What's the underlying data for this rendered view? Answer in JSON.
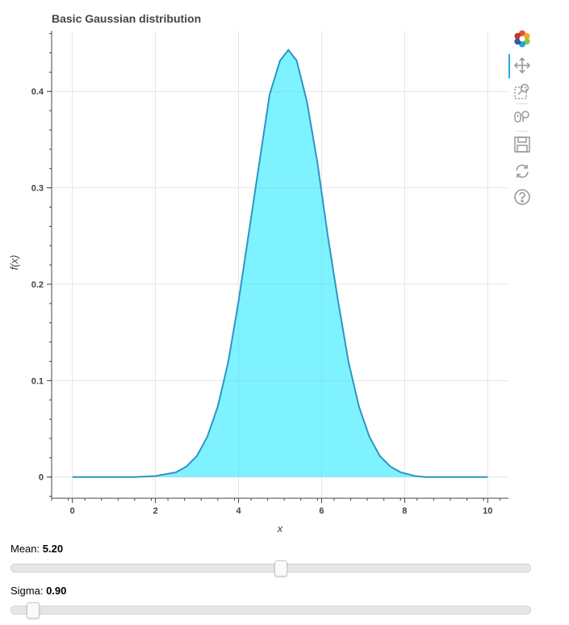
{
  "chart_data": {
    "type": "area",
    "title": "Basic Gaussian distribution",
    "xlabel": "x",
    "ylabel": "f(x)",
    "xlim": [
      -0.5,
      10.5
    ],
    "ylim": [
      -0.022,
      0.463
    ],
    "x_ticks": [
      0,
      2,
      4,
      6,
      8,
      10
    ],
    "y_ticks": [
      0,
      0.1,
      0.2,
      0.3,
      0.4
    ],
    "x_tick_labels": [
      "0",
      "2",
      "4",
      "6",
      "8",
      "10"
    ],
    "y_tick_labels": [
      "0",
      "0.1",
      "0.2",
      "0.3",
      "0.4"
    ],
    "grid": true,
    "series": [
      {
        "x": [
          0,
          0.5,
          1,
          1.5,
          2,
          2.5,
          2.75,
          3,
          3.25,
          3.5,
          3.75,
          4,
          4.25,
          4.5,
          4.75,
          5,
          5.2,
          5.4,
          5.65,
          5.9,
          6.15,
          6.4,
          6.65,
          6.9,
          7.15,
          7.4,
          7.65,
          7.9,
          8.25,
          8.5,
          9,
          9.5,
          10
        ],
        "y": [
          0.0,
          0.0,
          0.0,
          0.0,
          0.001,
          0.005,
          0.011,
          0.022,
          0.042,
          0.073,
          0.119,
          0.182,
          0.254,
          0.326,
          0.397,
          0.432,
          0.443,
          0.432,
          0.389,
          0.326,
          0.25,
          0.182,
          0.119,
          0.073,
          0.042,
          0.022,
          0.011,
          0.005,
          0.001,
          0.0,
          0.0,
          0.0,
          0.0
        ],
        "fill_color": "#00e5ff",
        "fill_alpha": 0.5,
        "line_color": "#2b95c6"
      }
    ]
  },
  "toolbar": {
    "tools": [
      "bokeh-logo-icon",
      "pan-icon",
      "box-zoom-icon",
      "wheel-zoom-icon",
      "save-icon",
      "reset-icon",
      "help-icon"
    ]
  },
  "sliders": [
    {
      "title": "Mean: ",
      "value_text": "5.20",
      "value": 5.2,
      "start": 0,
      "end": 10
    },
    {
      "title": "Sigma: ",
      "value_text": "0.90",
      "value": 0.9,
      "start": 0.5,
      "end": 10
    }
  ]
}
